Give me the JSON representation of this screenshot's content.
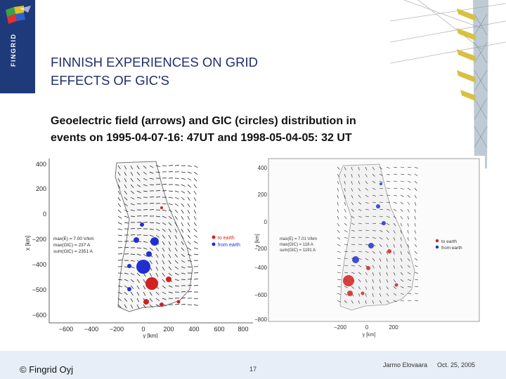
{
  "slide": {
    "title": "FINNISH EXPERIENCES ON GRID\nEFFECTS OF GIC'S",
    "subtitle": "Geoelectric field (arrows) and GIC (circles) distribution in\nevents on 1995-04-07-16: 47UT and 1998-05-04-05: 32 UT",
    "logo_text": "FINGRID",
    "logo_icon": "fingrid-flag-logo",
    "pylon_icon": "power-pylon-photo"
  },
  "map_left": {
    "y_ticks": [
      "400",
      "200",
      "0",
      "−200",
      "−400",
      "−500",
      "−600",
      "−800"
    ],
    "x_ticks": [
      "−600",
      "−400",
      "−200",
      "0",
      "200",
      "400",
      "600",
      "800"
    ],
    "y_axis_label": "x [km]",
    "x_axis_label": "y [km]",
    "stats": [
      "max(E) = 7.00 V/km",
      "max(GIC) = 237 A",
      "sum(GIC) = 2351 A"
    ],
    "legend": [
      "to earth",
      "from earth"
    ]
  },
  "map_right": {
    "y_ticks": [
      "400",
      "200",
      "0",
      "−200",
      "−400",
      "−600",
      "−800"
    ],
    "x_ticks": [
      "−200",
      "0",
      "200"
    ],
    "y_axis_label": "x [km]",
    "x_axis_label": "y [km]",
    "stats": [
      "max(E) = 7.01 V/km",
      "max(GIC) = 118 A",
      "sum(GIC) = 1191 A"
    ],
    "legend": [
      "to earth",
      "from earth"
    ]
  },
  "colors": {
    "to_earth": "#d42020",
    "from_earth": "#2030d0",
    "brand": "#1f3a7a"
  },
  "footer": {
    "copyright": "© Fingrid Oyj",
    "page_number": "17",
    "author": "Jarmo Elovaara",
    "date": "Oct. 25, 2005"
  }
}
